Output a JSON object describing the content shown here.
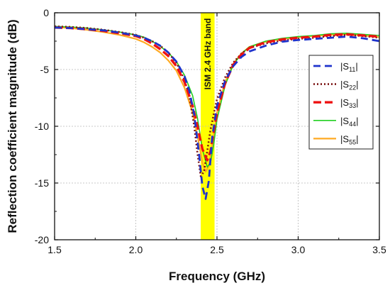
{
  "chart_data": {
    "type": "line",
    "title": "",
    "xlabel": "Frequency (GHz)",
    "ylabel": "Reflection coefficient magnitude (dB)",
    "xlim": [
      1.5,
      3.5
    ],
    "ylim": [
      -20,
      0
    ],
    "xticks": [
      1.5,
      2.0,
      2.5,
      3.0,
      3.5
    ],
    "xtick_labels": [
      "1.5",
      "2.0",
      "2.5",
      "3.0",
      "3.5"
    ],
    "yticks": [
      0,
      -5,
      -10,
      -15,
      -20
    ],
    "ytick_labels": [
      "0",
      "-5",
      "-10",
      "-15",
      "-20"
    ],
    "grid": true,
    "legend_position": "right",
    "band": {
      "x_range": [
        2.4,
        2.485
      ],
      "color": "#ffff00",
      "label": "ISM 2.4 GHz band"
    },
    "series": [
      {
        "name": "|S11|",
        "name_main": "S",
        "name_sub": "11",
        "color": "#1f33cc",
        "dash": "10,6",
        "width": 2.8,
        "x": [
          1.5,
          1.6,
          1.7,
          1.8,
          1.9,
          2.0,
          2.05,
          2.1,
          2.15,
          2.2,
          2.25,
          2.3,
          2.33,
          2.36,
          2.39,
          2.41,
          2.43,
          2.45,
          2.47,
          2.5,
          2.55,
          2.6,
          2.65,
          2.7,
          2.8,
          2.9,
          3.0,
          3.1,
          3.2,
          3.3,
          3.4,
          3.5
        ],
        "y": [
          -1.3,
          -1.35,
          -1.45,
          -1.55,
          -1.75,
          -2.0,
          -2.2,
          -2.5,
          -2.9,
          -3.5,
          -4.3,
          -5.6,
          -6.9,
          -9.0,
          -12.5,
          -15.3,
          -16.4,
          -14.8,
          -11.0,
          -8.2,
          -6.0,
          -4.7,
          -3.9,
          -3.4,
          -2.9,
          -2.55,
          -2.4,
          -2.3,
          -2.2,
          -2.1,
          -2.25,
          -2.5
        ]
      },
      {
        "name": "|S22|",
        "name_main": "S",
        "name_sub": "22",
        "color": "#7a1010",
        "dash": "2,3",
        "width": 2.6,
        "x": [
          1.5,
          1.6,
          1.7,
          1.8,
          1.9,
          2.0,
          2.05,
          2.1,
          2.15,
          2.2,
          2.25,
          2.3,
          2.33,
          2.36,
          2.38,
          2.4,
          2.42,
          2.44,
          2.46,
          2.5,
          2.55,
          2.6,
          2.65,
          2.7,
          2.8,
          2.9,
          3.0,
          3.1,
          3.2,
          3.3,
          3.4,
          3.5
        ],
        "y": [
          -1.2,
          -1.25,
          -1.35,
          -1.5,
          -1.7,
          -1.95,
          -2.2,
          -2.5,
          -2.9,
          -3.5,
          -4.4,
          -5.9,
          -7.4,
          -10.0,
          -12.4,
          -14.4,
          -14.0,
          -12.2,
          -10.3,
          -7.6,
          -5.7,
          -4.4,
          -3.6,
          -3.1,
          -2.7,
          -2.45,
          -2.3,
          -2.2,
          -2.05,
          -1.95,
          -2.05,
          -2.2
        ]
      },
      {
        "name": "|S33|",
        "name_main": "S",
        "name_sub": "33",
        "color": "#ee1111",
        "dash": "11,5",
        "width": 3.4,
        "x": [
          1.5,
          1.6,
          1.7,
          1.8,
          1.9,
          2.0,
          2.05,
          2.1,
          2.15,
          2.2,
          2.25,
          2.3,
          2.35,
          2.38,
          2.41,
          2.44,
          2.46,
          2.48,
          2.5,
          2.55,
          2.6,
          2.65,
          2.7,
          2.8,
          2.9,
          3.0,
          3.1,
          3.2,
          3.3,
          3.4,
          3.5
        ],
        "y": [
          -1.3,
          -1.35,
          -1.45,
          -1.6,
          -1.8,
          -2.05,
          -2.3,
          -2.7,
          -3.2,
          -3.8,
          -4.7,
          -6.1,
          -8.2,
          -10.0,
          -12.0,
          -13.0,
          -12.2,
          -10.5,
          -8.8,
          -6.2,
          -4.6,
          -3.7,
          -3.1,
          -2.6,
          -2.35,
          -2.2,
          -2.1,
          -1.95,
          -1.9,
          -2.0,
          -2.1
        ]
      },
      {
        "name": "|S44|",
        "name_main": "S",
        "name_sub": "44",
        "color": "#22d022",
        "dash": "",
        "width": 1.6,
        "x": [
          1.5,
          1.6,
          1.7,
          1.8,
          1.9,
          2.0,
          2.05,
          2.1,
          2.15,
          2.2,
          2.25,
          2.3,
          2.35,
          2.38,
          2.41,
          2.44,
          2.46,
          2.48,
          2.5,
          2.55,
          2.6,
          2.65,
          2.7,
          2.8,
          2.9,
          3.0,
          3.1,
          3.2,
          3.3,
          3.4,
          3.5
        ],
        "y": [
          -1.2,
          -1.25,
          -1.35,
          -1.5,
          -1.7,
          -1.95,
          -2.15,
          -2.5,
          -2.95,
          -3.5,
          -4.3,
          -5.5,
          -7.3,
          -9.3,
          -12.0,
          -13.6,
          -13.2,
          -11.6,
          -9.4,
          -6.4,
          -4.6,
          -3.6,
          -3.0,
          -2.5,
          -2.25,
          -2.1,
          -2.0,
          -1.85,
          -1.8,
          -1.9,
          -2.0
        ]
      },
      {
        "name": "|S55|",
        "name_main": "S",
        "name_sub": "55",
        "color": "#ffaa22",
        "dash": "",
        "width": 2.2,
        "x": [
          1.5,
          1.6,
          1.7,
          1.8,
          1.9,
          2.0,
          2.05,
          2.1,
          2.15,
          2.2,
          2.25,
          2.3,
          2.35,
          2.38,
          2.41,
          2.43,
          2.45,
          2.47,
          2.5,
          2.55,
          2.6,
          2.65,
          2.7,
          2.8,
          2.9,
          3.0,
          3.1,
          3.2,
          3.3,
          3.4,
          3.5
        ],
        "y": [
          -1.25,
          -1.35,
          -1.5,
          -1.7,
          -1.95,
          -2.3,
          -2.6,
          -3.0,
          -3.5,
          -4.2,
          -5.1,
          -6.6,
          -8.8,
          -10.8,
          -13.2,
          -14.0,
          -13.5,
          -11.8,
          -8.8,
          -6.1,
          -4.5,
          -3.6,
          -3.0,
          -2.55,
          -2.3,
          -2.15,
          -2.05,
          -1.95,
          -1.9,
          -2.0,
          -2.15
        ]
      }
    ]
  }
}
